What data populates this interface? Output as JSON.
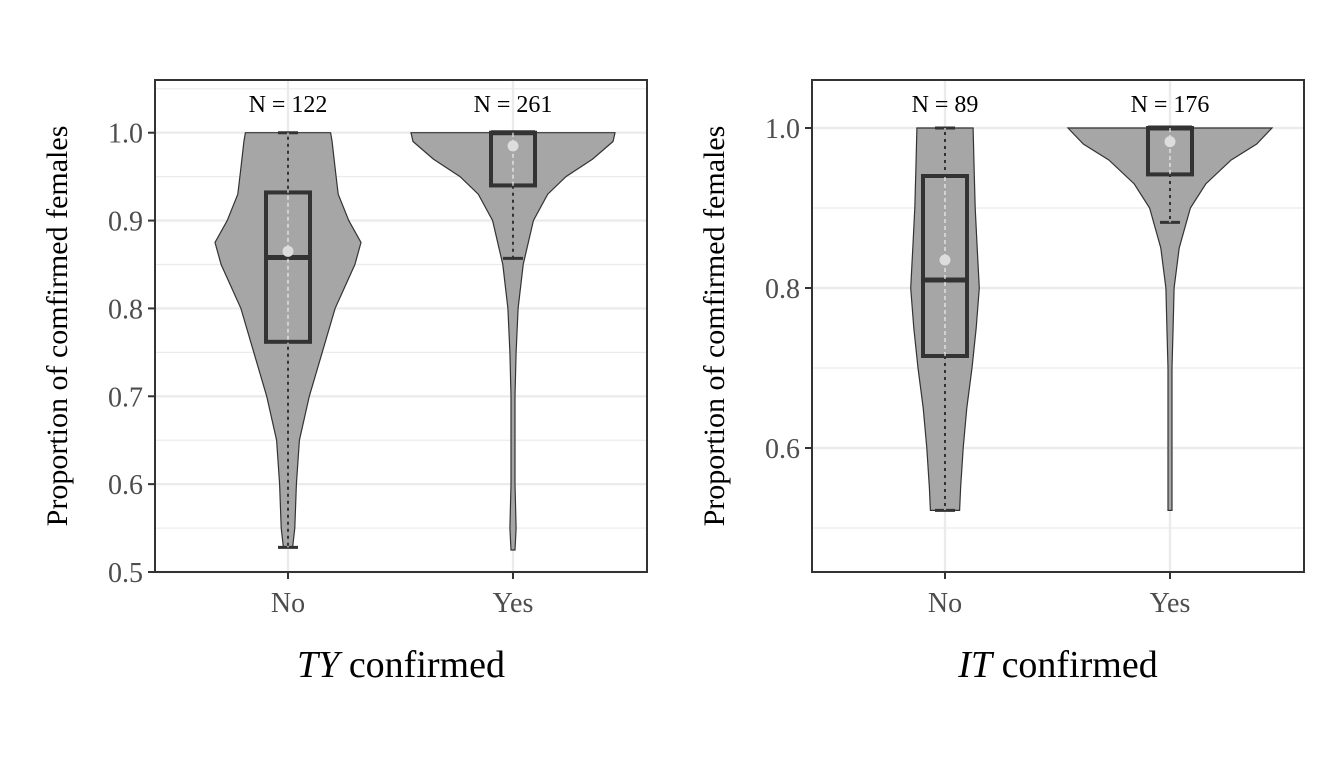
{
  "chart_data": [
    {
      "type": "violin",
      "ylabel": "Proportion of comfirmed females",
      "xlabel_italic": "TY",
      "xlabel_rest": " confirmed",
      "categories": [
        "No",
        "Yes"
      ],
      "yticks": [
        0.5,
        0.6,
        0.7,
        0.8,
        0.9,
        1.0
      ],
      "ytick_labels": [
        "0.5",
        "0.6",
        "0.7",
        "0.8",
        "0.9",
        "1.0"
      ],
      "ylim": [
        0.5,
        1.06
      ],
      "colors": {
        "violin": "#a6a6a6",
        "box": "#333333",
        "mean": "#dddddd",
        "grid": "#ebebeb"
      },
      "groups": [
        {
          "category": "No",
          "n_label": "N = 122",
          "box": {
            "q1": 0.762,
            "median": 0.858,
            "q3": 0.932,
            "lower": 0.528,
            "upper": 1.0
          },
          "mean": 0.865,
          "density": [
            [
              0.528,
              0.06
            ],
            [
              0.55,
              0.09
            ],
            [
              0.6,
              0.11
            ],
            [
              0.65,
              0.15
            ],
            [
              0.7,
              0.28
            ],
            [
              0.75,
              0.45
            ],
            [
              0.8,
              0.62
            ],
            [
              0.85,
              0.88
            ],
            [
              0.875,
              0.96
            ],
            [
              0.9,
              0.8
            ],
            [
              0.93,
              0.66
            ],
            [
              0.96,
              0.62
            ],
            [
              0.99,
              0.58
            ],
            [
              1.0,
              0.56
            ]
          ]
        },
        {
          "category": "Yes",
          "n_label": "N = 261",
          "box": {
            "q1": 0.94,
            "median": 1.0,
            "q3": 1.0,
            "lower": 0.857,
            "upper": 1.0
          },
          "mean": 0.985,
          "density": [
            [
              0.525,
              0.02
            ],
            [
              0.55,
              0.03
            ],
            [
              0.6,
              0.02
            ],
            [
              0.65,
              0.02
            ],
            [
              0.7,
              0.02
            ],
            [
              0.75,
              0.03
            ],
            [
              0.8,
              0.05
            ],
            [
              0.85,
              0.1
            ],
            [
              0.9,
              0.2
            ],
            [
              0.93,
              0.34
            ],
            [
              0.95,
              0.52
            ],
            [
              0.97,
              0.78
            ],
            [
              0.99,
              0.98
            ],
            [
              1.0,
              1.0
            ]
          ]
        }
      ]
    },
    {
      "type": "violin",
      "ylabel": "Proportion of comfirmed females",
      "xlabel_italic": "IT",
      "xlabel_rest": " confirmed",
      "categories": [
        "No",
        "Yes"
      ],
      "yticks": [
        0.6,
        0.8,
        1.0
      ],
      "ytick_labels": [
        "0.6",
        "0.8",
        "1.0"
      ],
      "ylim": [
        0.445,
        1.06
      ],
      "colors": {
        "violin": "#a6a6a6",
        "box": "#333333",
        "mean": "#dddddd",
        "grid": "#ebebeb"
      },
      "groups": [
        {
          "category": "No",
          "n_label": "N = 89",
          "box": {
            "q1": 0.715,
            "median": 0.81,
            "q3": 0.94,
            "lower": 0.522,
            "upper": 1.0
          },
          "mean": 0.835,
          "density": [
            [
              0.522,
              0.28
            ],
            [
              0.55,
              0.3
            ],
            [
              0.6,
              0.35
            ],
            [
              0.65,
              0.42
            ],
            [
              0.7,
              0.52
            ],
            [
              0.75,
              0.6
            ],
            [
              0.8,
              0.66
            ],
            [
              0.85,
              0.62
            ],
            [
              0.9,
              0.58
            ],
            [
              0.95,
              0.56
            ],
            [
              1.0,
              0.54
            ]
          ]
        },
        {
          "category": "Yes",
          "n_label": "N = 176",
          "box": {
            "q1": 0.942,
            "median": 1.0,
            "q3": 1.0,
            "lower": 0.882,
            "upper": 1.0
          },
          "mean": 0.983,
          "density": [
            [
              0.522,
              0.02
            ],
            [
              0.55,
              0.02
            ],
            [
              0.6,
              0.02
            ],
            [
              0.65,
              0.02
            ],
            [
              0.7,
              0.02
            ],
            [
              0.75,
              0.03
            ],
            [
              0.8,
              0.04
            ],
            [
              0.85,
              0.09
            ],
            [
              0.9,
              0.2
            ],
            [
              0.93,
              0.35
            ],
            [
              0.96,
              0.6
            ],
            [
              0.98,
              0.85
            ],
            [
              1.0,
              1.0
            ]
          ]
        }
      ]
    }
  ]
}
